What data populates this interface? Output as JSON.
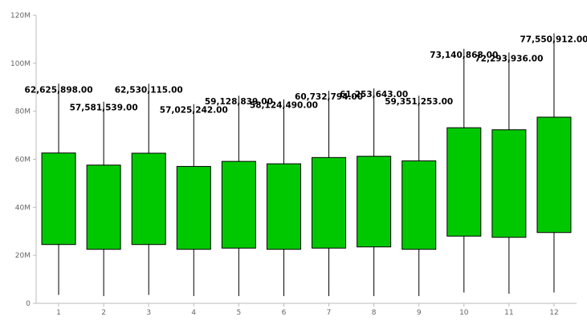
{
  "chart_data": {
    "type": "boxplot",
    "title": "",
    "xlabel": "",
    "ylabel": "",
    "ylim": [
      0,
      120000000
    ],
    "y_ticks": [
      {
        "value": 0,
        "label": "0"
      },
      {
        "value": 20000000,
        "label": "20M"
      },
      {
        "value": 40000000,
        "label": "40M"
      },
      {
        "value": 60000000,
        "label": "60M"
      },
      {
        "value": 80000000,
        "label": "80M"
      },
      {
        "value": 100000000,
        "label": "100M"
      },
      {
        "value": 120000000,
        "label": "120M"
      }
    ],
    "grid": false,
    "legend": "none",
    "box_color": "#00c800",
    "categories": [
      "1",
      "2",
      "3",
      "4",
      "5",
      "6",
      "7",
      "8",
      "9",
      "10",
      "11",
      "12"
    ],
    "boxes": [
      {
        "min": 3500000,
        "q1": 24500000,
        "q3": 62625898,
        "max": 91500000,
        "label": "62,625,898.00"
      },
      {
        "min": 3000000,
        "q1": 22500000,
        "q3": 57581539,
        "max": 84000000,
        "label": "57,581,539.00"
      },
      {
        "min": 3500000,
        "q1": 24500000,
        "q3": 62530115,
        "max": 91500000,
        "label": "62,530,115.00"
      },
      {
        "min": 3000000,
        "q1": 22500000,
        "q3": 57025242,
        "max": 83000000,
        "label": "57,025,242.00"
      },
      {
        "min": 3000000,
        "q1": 23000000,
        "q3": 59128839,
        "max": 86500000,
        "label": "59,128,839.00"
      },
      {
        "min": 3000000,
        "q1": 22500000,
        "q3": 58124490,
        "max": 85000000,
        "label": "58,124,490.00"
      },
      {
        "min": 3000000,
        "q1": 23000000,
        "q3": 60732794,
        "max": 88500000,
        "label": "60,732,794.00"
      },
      {
        "min": 3000000,
        "q1": 23500000,
        "q3": 61253643,
        "max": 89500000,
        "label": "61,253,643.00"
      },
      {
        "min": 3000000,
        "q1": 22500000,
        "q3": 59351253,
        "max": 86500000,
        "label": "59,351,253.00"
      },
      {
        "min": 4500000,
        "q1": 28000000,
        "q3": 73140868,
        "max": 106000000,
        "label": "73,140,868.00"
      },
      {
        "min": 4000000,
        "q1": 27500000,
        "q3": 72293936,
        "max": 104500000,
        "label": "72,293,936.00"
      },
      {
        "min": 4500000,
        "q1": 29500000,
        "q3": 77550912,
        "max": 112500000,
        "label": "77,550,912.00"
      }
    ]
  }
}
